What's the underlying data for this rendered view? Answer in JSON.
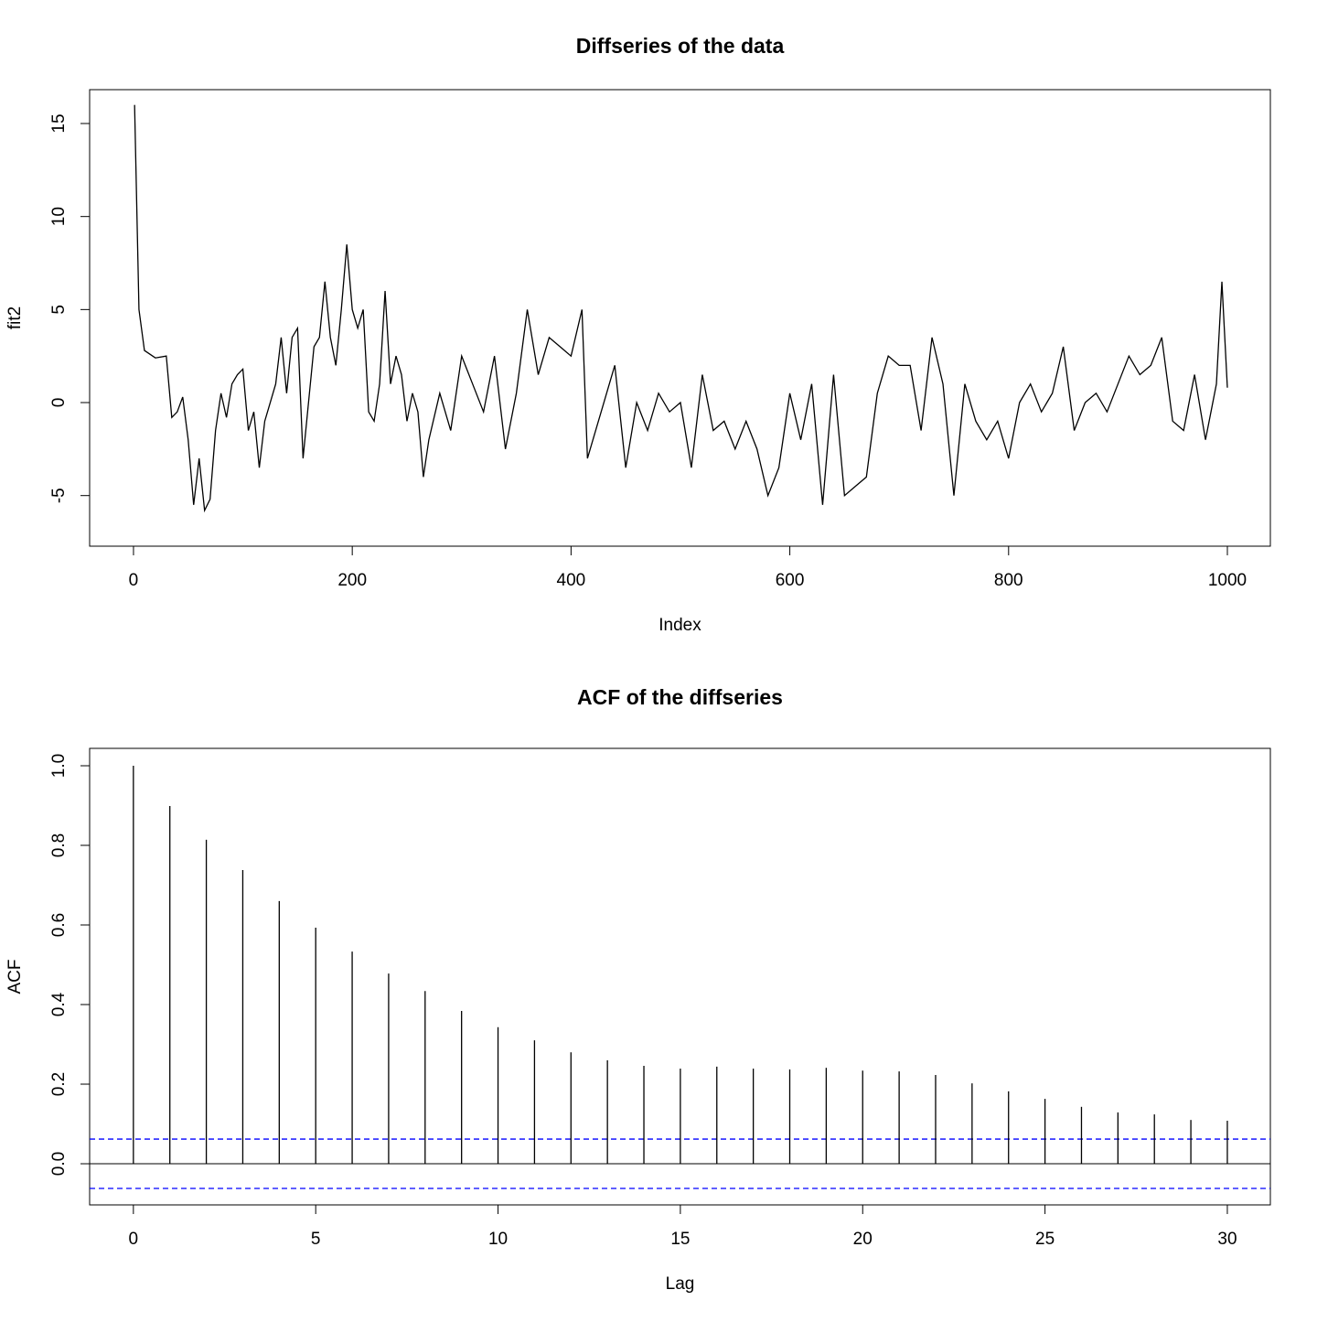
{
  "chart_data": [
    {
      "type": "line",
      "title": "Diffseries of the data",
      "xlabel": "Index",
      "ylabel": "fit2",
      "color": "#000000",
      "x": [
        1,
        5,
        10,
        20,
        30,
        35,
        40,
        45,
        50,
        55,
        60,
        65,
        70,
        75,
        80,
        85,
        90,
        95,
        100,
        105,
        110,
        115,
        120,
        125,
        130,
        135,
        140,
        145,
        150,
        155,
        160,
        165,
        170,
        175,
        180,
        185,
        190,
        195,
        200,
        205,
        210,
        215,
        220,
        225,
        230,
        235,
        240,
        245,
        250,
        255,
        260,
        265,
        270,
        280,
        290,
        300,
        310,
        320,
        330,
        340,
        350,
        360,
        370,
        380,
        390,
        400,
        410,
        415,
        420,
        430,
        440,
        450,
        460,
        470,
        480,
        490,
        500,
        510,
        520,
        530,
        540,
        550,
        560,
        570,
        580,
        590,
        600,
        610,
        620,
        630,
        640,
        650,
        660,
        670,
        680,
        690,
        700,
        710,
        720,
        730,
        740,
        750,
        760,
        770,
        780,
        790,
        800,
        810,
        820,
        830,
        840,
        850,
        860,
        870,
        880,
        890,
        900,
        910,
        920,
        930,
        940,
        950,
        960,
        970,
        980,
        990,
        995,
        1000
      ],
      "values": [
        16,
        5,
        2.8,
        2.4,
        2.5,
        -0.8,
        -0.5,
        0.3,
        -2,
        -5.5,
        -3,
        -5.8,
        -5.2,
        -1.5,
        0.5,
        -0.8,
        1,
        1.5,
        1.8,
        -1.5,
        -0.5,
        -3.5,
        -1,
        0,
        1,
        3.5,
        0.5,
        3.5,
        4,
        -3,
        0,
        3,
        3.5,
        6.5,
        3.5,
        2,
        5,
        8.5,
        5,
        4,
        5,
        -0.5,
        -1,
        1,
        6,
        1,
        2.5,
        1.5,
        -1,
        0.5,
        -0.5,
        -4,
        -2,
        0.5,
        -1.5,
        2.5,
        1,
        -0.5,
        2.5,
        -2.5,
        0.5,
        5,
        1.5,
        3.5,
        3,
        2.5,
        5,
        -3,
        -2,
        0,
        2,
        -3.5,
        0,
        -1.5,
        0.5,
        -0.5,
        0,
        -3.5,
        1.5,
        -1.5,
        -1,
        -2.5,
        -1,
        -2.5,
        -5,
        -3.5,
        0.5,
        -2,
        1,
        -5.5,
        1.5,
        -5,
        -4.5,
        -4,
        0.5,
        2.5,
        2,
        2,
        -1.5,
        3.5,
        1,
        -5,
        1,
        -1,
        -2,
        -1,
        -3,
        0,
        1,
        -0.5,
        0.5,
        3,
        -1.5,
        0,
        0.5,
        -0.5,
        1,
        2.5,
        1.5,
        2,
        3.5,
        -1,
        -1.5,
        1.5,
        -2,
        1,
        6.5,
        0.8
      ],
      "xlim": [
        -40.1,
        1039.3
      ],
      "ylim": [
        -7.72,
        16.82
      ],
      "xticks": [
        0,
        200,
        400,
        600,
        800,
        1000
      ],
      "yticks": [
        -5,
        0,
        5,
        10,
        15
      ]
    },
    {
      "type": "stem",
      "title": "ACF of the diffseries",
      "xlabel": "Lag",
      "ylabel": "ACF",
      "color": "#000000",
      "x": [
        0,
        1,
        2,
        3,
        4,
        5,
        6,
        7,
        8,
        9,
        10,
        11,
        12,
        13,
        14,
        15,
        16,
        17,
        18,
        19,
        20,
        21,
        22,
        23,
        24,
        25,
        26,
        27,
        28,
        29,
        30
      ],
      "values": [
        1.0,
        0.899,
        0.814,
        0.738,
        0.66,
        0.593,
        0.533,
        0.478,
        0.434,
        0.384,
        0.343,
        0.31,
        0.28,
        0.26,
        0.246,
        0.239,
        0.244,
        0.239,
        0.237,
        0.241,
        0.234,
        0.232,
        0.223,
        0.202,
        0.182,
        0.163,
        0.143,
        0.129,
        0.124,
        0.11,
        0.108
      ],
      "xlim": [
        -1.2,
        31.18
      ],
      "ylim": [
        -0.1034,
        1.0437
      ],
      "xticks": [
        0,
        5,
        10,
        15,
        20,
        25,
        30
      ],
      "yticks": [
        {
          "value": 0,
          "label": "0.0"
        },
        0.2,
        0.4,
        0.6,
        0.8,
        {
          "value": 1,
          "label": "1.0"
        }
      ],
      "hline": 0,
      "ci_lines": [
        0.062,
        -0.062
      ],
      "ci_color": "#0000ff"
    }
  ]
}
